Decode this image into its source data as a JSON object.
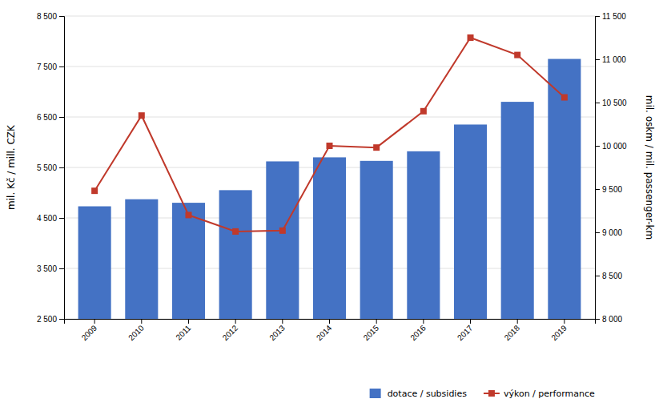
{
  "chart_data": {
    "type": "bar",
    "categories": [
      "2009",
      "2010",
      "2011",
      "2012",
      "2013",
      "2014",
      "2015",
      "2016",
      "2017",
      "2018",
      "2019"
    ],
    "series": [
      {
        "name": "dotace / subsidies",
        "type": "bar",
        "color": "#4472C4",
        "values": [
          4730,
          4870,
          4800,
          5050,
          5620,
          5700,
          5630,
          5820,
          6350,
          6800,
          7650
        ]
      },
      {
        "name": "výkon / performance",
        "type": "line",
        "color": "#C0392B",
        "marker": "square",
        "axis": "y2",
        "values": [
          9480,
          10350,
          9200,
          9010,
          9020,
          10000,
          9980,
          10400,
          11250,
          11050,
          10560
        ]
      }
    ],
    "ylabel": "mil. Kč / mill. CZK",
    "y2label": "mil. oskm / mil. passenger-km",
    "ylim": [
      2500,
      8500
    ],
    "yticks": [
      {
        "value": 2500,
        "label": "2 500"
      },
      {
        "value": 3500,
        "label": "3 500"
      },
      {
        "value": 4500,
        "label": "4 500"
      },
      {
        "value": 5500,
        "label": "5 500"
      },
      {
        "value": 6500,
        "label": "6 500"
      },
      {
        "value": 7500,
        "label": "7 500"
      },
      {
        "value": 8500,
        "label": "8 500"
      }
    ],
    "y2lim": [
      8000,
      11500
    ],
    "y2ticks": [
      {
        "value": 8000,
        "label": "8 000"
      },
      {
        "value": 8500,
        "label": "8 500"
      },
      {
        "value": 9000,
        "label": "9 000"
      },
      {
        "value": 9500,
        "label": "9 500"
      },
      {
        "value": 10000,
        "label": "10 000"
      },
      {
        "value": 10500,
        "label": "10 500"
      },
      {
        "value": 11000,
        "label": "11 000"
      },
      {
        "value": 11500,
        "label": "11 500"
      }
    ],
    "grid": true,
    "legend": "lower right"
  }
}
